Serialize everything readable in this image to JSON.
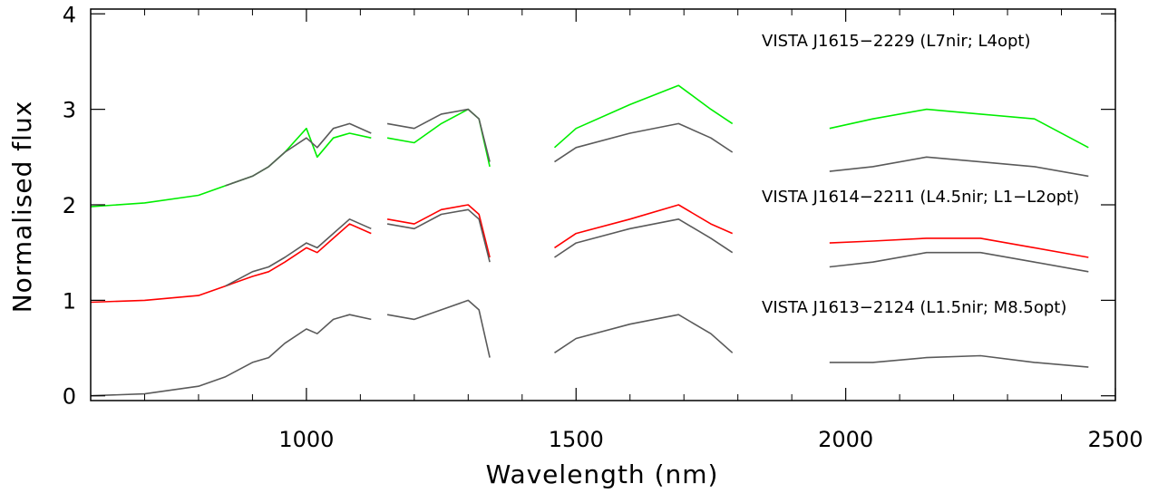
{
  "chart_data": {
    "type": "line",
    "title": "",
    "xlabel": "Wavelength (nm)",
    "ylabel": "Normalised flux",
    "xlim": [
      600,
      2500
    ],
    "ylim": [
      -0.05,
      4.05
    ],
    "grid": false,
    "x_ticks": [
      "1000",
      "1500",
      "2000",
      "2500"
    ],
    "y_ticks": [
      "0",
      "1",
      "2",
      "3",
      "4"
    ],
    "x_tick_values": [
      1000,
      1500,
      2000,
      2500
    ],
    "y_tick_values": [
      0,
      1,
      2,
      3,
      4
    ],
    "colors": {
      "green": "#00ee00",
      "red": "#ff0000",
      "grey": "#5a5a5a"
    },
    "legend": [
      {
        "label": "VISTA J1615−2229 (L7nir; L4opt)",
        "color": "#00ee00",
        "placement": "top-right"
      },
      {
        "label": "VISTA J1614−2211 (L4.5nir; L1−L2opt)",
        "color": "#ff0000",
        "placement": "right"
      },
      {
        "label": "VISTA J1613−2124 (L1.5nir; M8.5opt)",
        "color": "#000000",
        "placement": "lower-right"
      }
    ],
    "series": [
      {
        "name": "VISTA J1613−2124 (L1.5nir; M8.5opt)",
        "color": "#5a5a5a",
        "segments": [
          {
            "x": [
              600,
              700,
              800,
              850,
              900,
              930,
              960,
              1000,
              1020,
              1050,
              1080,
              1120
            ],
            "y": [
              0.0,
              0.02,
              0.1,
              0.2,
              0.35,
              0.4,
              0.55,
              0.7,
              0.65,
              0.8,
              0.85,
              0.8
            ]
          },
          {
            "x": [
              1150,
              1200,
              1250,
              1300,
              1320,
              1340
            ],
            "y": [
              0.85,
              0.8,
              0.9,
              1.0,
              0.9,
              0.4
            ]
          },
          {
            "x": [
              1460,
              1500,
              1600,
              1690,
              1750,
              1790
            ],
            "y": [
              0.45,
              0.6,
              0.75,
              0.85,
              0.65,
              0.45
            ]
          },
          {
            "x": [
              1970,
              2050,
              2150,
              2250,
              2350,
              2450
            ],
            "y": [
              0.35,
              0.35,
              0.4,
              0.42,
              0.35,
              0.3
            ]
          }
        ]
      },
      {
        "name": "VISTA J1614−2211 (L4.5nir; L1−L2opt)",
        "color": "#ff0000",
        "segments": [
          {
            "x": [
              600,
              700,
              800,
              850,
              900,
              930,
              960,
              1000,
              1020,
              1050,
              1080,
              1120
            ],
            "y": [
              0.98,
              1.0,
              1.05,
              1.15,
              1.25,
              1.3,
              1.4,
              1.55,
              1.5,
              1.65,
              1.8,
              1.7
            ]
          },
          {
            "x": [
              1150,
              1200,
              1250,
              1300,
              1320,
              1340
            ],
            "y": [
              1.85,
              1.8,
              1.95,
              2.0,
              1.9,
              1.45
            ]
          },
          {
            "x": [
              1460,
              1500,
              1600,
              1690,
              1750,
              1790
            ],
            "y": [
              1.55,
              1.7,
              1.85,
              2.0,
              1.8,
              1.7
            ]
          },
          {
            "x": [
              1970,
              2050,
              2150,
              2250,
              2350,
              2450
            ],
            "y": [
              1.6,
              1.62,
              1.65,
              1.65,
              1.55,
              1.45
            ]
          }
        ]
      },
      {
        "name": "VISTA J1615−2229 (L7nir; L4opt)",
        "color": "#00ee00",
        "segments": [
          {
            "x": [
              600,
              700,
              800,
              850,
              900,
              930,
              960,
              1000,
              1020,
              1050,
              1080,
              1120
            ],
            "y": [
              1.98,
              2.02,
              2.1,
              2.2,
              2.3,
              2.4,
              2.55,
              2.8,
              2.5,
              2.7,
              2.75,
              2.7
            ]
          },
          {
            "x": [
              1150,
              1200,
              1250,
              1300,
              1320,
              1340
            ],
            "y": [
              2.7,
              2.65,
              2.85,
              3.0,
              2.9,
              2.4
            ]
          },
          {
            "x": [
              1460,
              1500,
              1600,
              1690,
              1750,
              1790
            ],
            "y": [
              2.6,
              2.8,
              3.05,
              3.25,
              3.0,
              2.85
            ]
          },
          {
            "x": [
              1970,
              2050,
              2150,
              2250,
              2350,
              2450
            ],
            "y": [
              2.8,
              2.9,
              3.0,
              2.95,
              2.9,
              2.6
            ]
          }
        ]
      },
      {
        "name": "",
        "color": "#5a5a5a",
        "segments": [
          {
            "x": [
              850,
              900,
              930,
              960,
              1000,
              1020,
              1050,
              1080,
              1120
            ],
            "y": [
              1.15,
              1.3,
              1.35,
              1.45,
              1.6,
              1.55,
              1.7,
              1.85,
              1.75
            ]
          },
          {
            "x": [
              1150,
              1200,
              1250,
              1300,
              1320,
              1340
            ],
            "y": [
              1.8,
              1.75,
              1.9,
              1.95,
              1.85,
              1.4
            ]
          },
          {
            "x": [
              1460,
              1500,
              1600,
              1690,
              1750,
              1790
            ],
            "y": [
              1.45,
              1.6,
              1.75,
              1.85,
              1.65,
              1.5
            ]
          },
          {
            "x": [
              1970,
              2050,
              2150,
              2250,
              2350,
              2450
            ],
            "y": [
              1.35,
              1.4,
              1.5,
              1.5,
              1.4,
              1.3
            ]
          }
        ]
      },
      {
        "name": "",
        "color": "#5a5a5a",
        "segments": [
          {
            "x": [
              850,
              900,
              930,
              960,
              1000,
              1020,
              1050,
              1080,
              1120
            ],
            "y": [
              2.2,
              2.3,
              2.4,
              2.55,
              2.7,
              2.6,
              2.8,
              2.85,
              2.75
            ]
          },
          {
            "x": [
              1150,
              1200,
              1250,
              1300,
              1320,
              1340
            ],
            "y": [
              2.85,
              2.8,
              2.95,
              3.0,
              2.9,
              2.45
            ]
          },
          {
            "x": [
              1460,
              1500,
              1600,
              1690,
              1750,
              1790
            ],
            "y": [
              2.45,
              2.6,
              2.75,
              2.85,
              2.7,
              2.55
            ]
          },
          {
            "x": [
              1970,
              2050,
              2150,
              2250,
              2350,
              2450
            ],
            "y": [
              2.35,
              2.4,
              2.5,
              2.45,
              2.4,
              2.3
            ]
          }
        ]
      }
    ]
  }
}
